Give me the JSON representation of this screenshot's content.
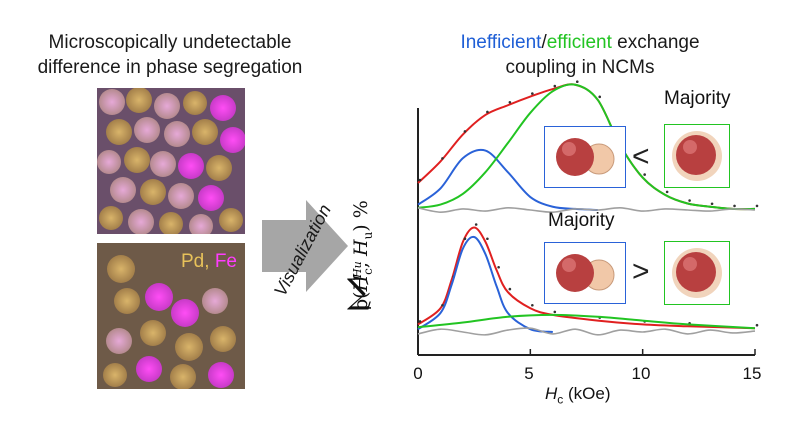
{
  "left_panel": {
    "title_line1": "Microscopically undetectable",
    "title_line2": "difference in phase segregation",
    "pd_label": "Pd",
    "comma": ",",
    "fe_label": "Fe"
  },
  "arrow": {
    "label": "Visualization"
  },
  "right_panel": {
    "title_inefficient": "Inefficient",
    "title_slash": "/",
    "title_efficient": "efficient",
    "title_rest": " exchange",
    "title_line2": "coupling in NCMs",
    "majority_top": "Majority",
    "majority_bottom": "Majority",
    "compare_top": "<",
    "compare_bottom": ">"
  },
  "chart_data": {
    "type": "line",
    "ylabel_prefix": "ρ(",
    "ylabel_hc": "H",
    "ylabel_hc_sub": "c",
    "ylabel_mid": ", ",
    "ylabel_hu": "H",
    "ylabel_hu_sub": "u",
    "ylabel_suffix": ") %",
    "ylabel_sum_sub": "Hu",
    "xlabel_h": "H",
    "xlabel_sub": "c",
    "xlabel_unit": " (kOe)",
    "x_ticks": [
      "0",
      "5",
      "10",
      "15"
    ],
    "xlim": [
      0,
      15
    ],
    "colors": {
      "total": "#e02020",
      "inefficient": "#2a62d8",
      "efficient": "#22c422",
      "residual": "#a0a0a0",
      "points": "#333333"
    },
    "panels": [
      {
        "name": "top",
        "series": [
          {
            "key": "total",
            "x": [
              0,
              1,
              2,
              3,
              4,
              5,
              6,
              7,
              8,
              9,
              10,
              11,
              12,
              13,
              14,
              15
            ],
            "y": [
              0.25,
              0.45,
              0.7,
              0.88,
              0.97,
              1.05,
              1.12,
              1.16,
              1.02,
              0.6,
              0.3,
              0.14,
              0.06,
              0.03,
              0.01,
              0.01
            ]
          },
          {
            "key": "inefficient",
            "x": [
              0,
              1,
              2,
              3,
              4,
              5,
              6,
              7,
              8
            ],
            "y": [
              0.05,
              0.2,
              0.48,
              0.55,
              0.35,
              0.12,
              0.03,
              0.01,
              0.0
            ]
          },
          {
            "key": "efficient",
            "x": [
              0,
              1,
              2,
              3,
              4,
              5,
              6,
              7,
              8,
              9,
              10,
              11,
              12,
              13,
              14,
              15
            ],
            "y": [
              0.02,
              0.05,
              0.15,
              0.35,
              0.62,
              0.9,
              1.1,
              1.16,
              1.02,
              0.6,
              0.3,
              0.14,
              0.06,
              0.03,
              0.01,
              0.01
            ]
          },
          {
            "key": "residual",
            "x": [
              0,
              1,
              2,
              3,
              4,
              5,
              6,
              7,
              8,
              9,
              10,
              11,
              12,
              13,
              14,
              15
            ],
            "y": [
              0.02,
              -0.02,
              0.01,
              -0.01,
              0.02,
              0.0,
              -0.02,
              0.01,
              0.0,
              0.02,
              -0.01,
              0.01,
              0.0,
              -0.01,
              0.01,
              0.0
            ]
          }
        ]
      },
      {
        "name": "bottom",
        "series": [
          {
            "key": "total",
            "x": [
              0,
              1,
              1.5,
              2,
              2.5,
              3,
              3.5,
              4,
              5,
              6,
              8,
              10,
              12,
              15
            ],
            "y": [
              0.08,
              0.25,
              0.55,
              0.95,
              1.1,
              0.95,
              0.65,
              0.42,
              0.25,
              0.18,
              0.12,
              0.08,
              0.06,
              0.04
            ]
          },
          {
            "key": "inefficient",
            "x": [
              0,
              1,
              1.5,
              2,
              2.5,
              3,
              3.5,
              4,
              5,
              6
            ],
            "y": [
              0.03,
              0.2,
              0.5,
              0.88,
              1.0,
              0.82,
              0.48,
              0.2,
              0.03,
              0.0
            ]
          },
          {
            "key": "efficient",
            "x": [
              0,
              2,
              4,
              6,
              8,
              10,
              12,
              15
            ],
            "y": [
              0.05,
              0.1,
              0.16,
              0.18,
              0.16,
              0.12,
              0.08,
              0.04
            ]
          },
          {
            "key": "residual",
            "x": [
              0,
              1,
              2,
              3,
              4,
              5,
              6,
              7,
              8,
              9,
              10,
              11,
              12,
              13,
              14,
              15
            ],
            "y": [
              -0.02,
              0.03,
              0.0,
              -0.03,
              0.02,
              0.04,
              -0.02,
              0.03,
              -0.03,
              0.02,
              0.0,
              0.03,
              -0.02,
              0.02,
              -0.01,
              0.01
            ]
          }
        ]
      }
    ]
  }
}
